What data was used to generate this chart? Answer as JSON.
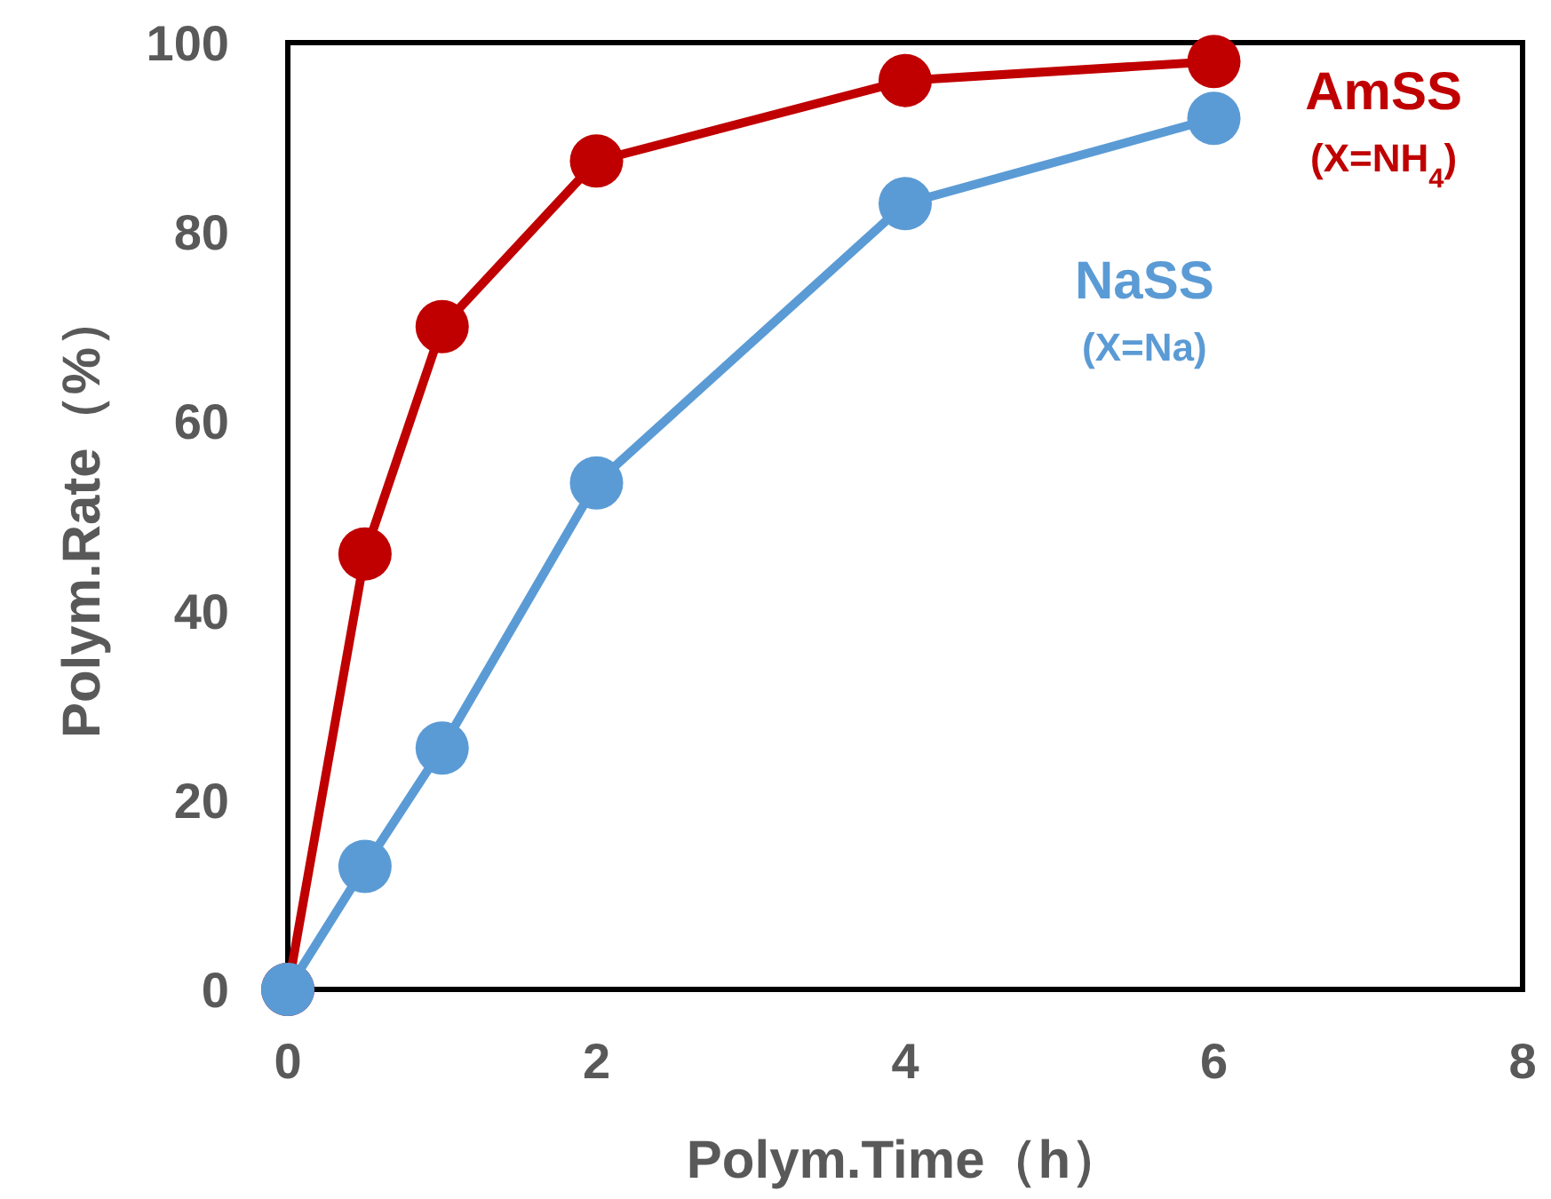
{
  "chart_data": {
    "type": "line",
    "xlabel": "Polym.Time（h）",
    "ylabel": "Polym.Rate（%）",
    "xlim": [
      0,
      8
    ],
    "xticks": [
      0,
      2,
      4,
      6,
      8
    ],
    "ylim": [
      0,
      100
    ],
    "yticks": [
      0,
      20,
      40,
      60,
      80,
      100
    ],
    "marker": "circle",
    "line_style": "solid",
    "grid": false,
    "series": [
      {
        "name": "AmSS",
        "color": "#c00000",
        "x": [
          0,
          0.5,
          1,
          2,
          4,
          6
        ],
        "values": [
          0,
          46,
          70,
          87.5,
          96,
          98
        ]
      },
      {
        "name": "NaSS",
        "color": "#5b9bd5",
        "x": [
          0,
          0.5,
          1,
          2,
          4,
          6
        ],
        "values": [
          0,
          13,
          25.5,
          53.5,
          83,
          92
        ]
      }
    ],
    "annotations": [
      "(X=NH$_{4}$)",
      "(X=Na)"
    ]
  }
}
